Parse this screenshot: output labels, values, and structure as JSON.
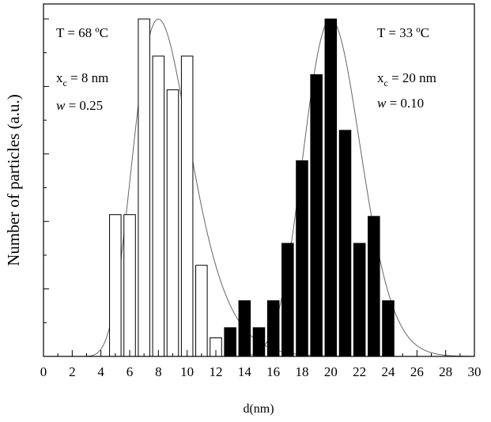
{
  "chart_data": {
    "type": "bar",
    "xlabel": "d(nm)",
    "ylabel": "Number of particles (a.u.)",
    "xlim": [
      0,
      30
    ],
    "ylim": [
      0,
      1.0
    ],
    "xticks": [
      "0",
      "2",
      "4",
      "6",
      "8",
      "10",
      "12",
      "14",
      "16",
      "18",
      "20",
      "22",
      "24",
      "26",
      "28",
      "30"
    ],
    "grid": false,
    "annotations": {
      "left": {
        "temp": "T = 68 ºC",
        "xc_prefix": "x",
        "xc_sub": "c",
        "xc_value": " = 8 nm",
        "w_symbol": "w",
        "w_value": " = 0.25"
      },
      "right": {
        "temp": "T = 33 ºC",
        "xc_prefix": "x",
        "xc_sub": "c",
        "xc_value": " = 20 nm",
        "w_symbol": "w",
        "w_value": " = 0.10"
      }
    },
    "series": [
      {
        "style": "open",
        "x": [
          5,
          6,
          7,
          8,
          9,
          10,
          11,
          12
        ],
        "values": [
          0.42,
          0.42,
          1.0,
          0.89,
          0.79,
          0.89,
          0.27,
          0.055
        ],
        "fit": {
          "center": 8,
          "w": 0.25,
          "peak": 1.0
        }
      },
      {
        "style": "filled",
        "x": [
          13,
          14,
          15,
          16,
          17,
          18,
          19,
          20,
          21,
          22,
          23,
          24
        ],
        "values": [
          0.085,
          0.165,
          0.085,
          0.165,
          0.335,
          0.58,
          0.835,
          1.0,
          0.67,
          0.335,
          0.415,
          0.165
        ],
        "fit": {
          "center": 20,
          "w": 0.1,
          "peak": 1.0
        }
      }
    ]
  }
}
